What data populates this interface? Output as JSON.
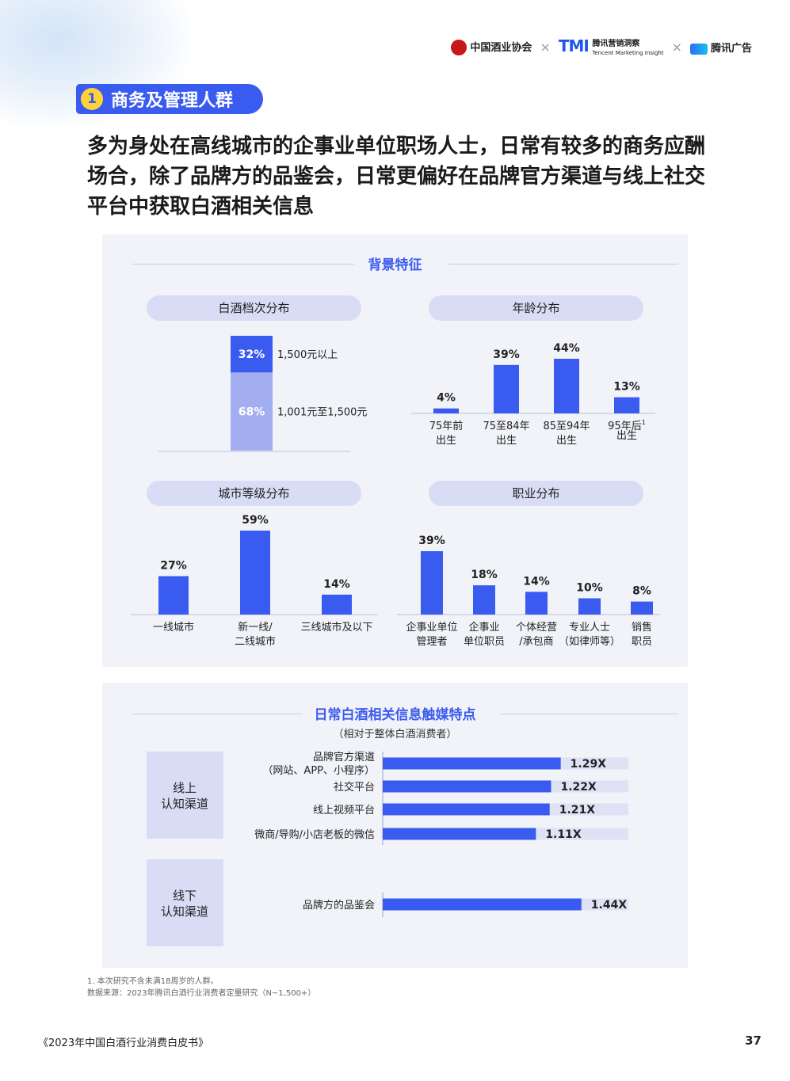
{
  "logos": {
    "assoc": "中国酒业协会",
    "tmi": "TMI",
    "tmi_name": "腾讯营销洞察",
    "tmi_en": "Tencent Marketing Insight",
    "ad": "腾讯广告",
    "sep": "×"
  },
  "section": {
    "number": "1",
    "title": "商务及管理人群"
  },
  "headline": "多为身处在高线城市的企事业单位职场人士，日常有较多的商务应酬场合，除了品牌方的品鉴会，日常更偏好在品牌官方渠道与线上社交平台中获取白酒相关信息",
  "panel1": {
    "title": "背景特征"
  },
  "panel2": {
    "title": "日常白酒相关信息触媒特点",
    "subtitle": "（相对于整体白酒消费者）"
  },
  "chart_data": [
    {
      "type": "bar",
      "title": "白酒档次分布",
      "stacked": true,
      "series": [
        {
          "name": "1,500元以上",
          "values": [
            32
          ],
          "label": "32%",
          "color": "#3a5bf0"
        },
        {
          "name": "1,001元至1,500元",
          "values": [
            68
          ],
          "label": "68%",
          "color": "#a3aef0"
        }
      ]
    },
    {
      "type": "bar",
      "title": "年龄分布",
      "categories": [
        "75年前\n出生",
        "75至84年\n出生",
        "85至94年\n出生",
        "95年后\n出生"
      ],
      "values": [
        4,
        39,
        44,
        13
      ],
      "labels": [
        "4%",
        "39%",
        "44%",
        "13%"
      ],
      "superscript_on_last": "1"
    },
    {
      "type": "bar",
      "title": "城市等级分布",
      "categories": [
        "一线城市",
        "新一线/\n二线城市",
        "三线城市及以下"
      ],
      "values": [
        27,
        59,
        14
      ],
      "labels": [
        "27%",
        "59%",
        "14%"
      ]
    },
    {
      "type": "bar",
      "title": "职业分布",
      "categories": [
        "企事业单位\n管理者",
        "企事业\n单位职员",
        "个体经营\n/承包商",
        "专业人士\n（如律师等）",
        "销售\n职员"
      ],
      "values": [
        39,
        18,
        14,
        10,
        8
      ],
      "labels": [
        "39%",
        "18%",
        "14%",
        "10%",
        "8%"
      ]
    },
    {
      "type": "bar",
      "orientation": "horizontal",
      "title": "日常白酒相关信息触媒特点",
      "groups": [
        {
          "name": "线上\n认知渠道",
          "categories": [
            "品牌官方渠道\n（网站、APP、小程序）",
            "社交平台",
            "线上视频平台",
            "微商/导购/小店老板的微信"
          ],
          "values": [
            1.29,
            1.22,
            1.21,
            1.11
          ],
          "labels": [
            "1.29X",
            "1.22X",
            "1.21X",
            "1.11X"
          ]
        },
        {
          "name": "线下\n认知渠道",
          "categories": [
            "品牌方的品鉴会"
          ],
          "values": [
            1.44
          ],
          "labels": [
            "1.44X"
          ]
        }
      ],
      "xlim": [
        0,
        1.78
      ]
    }
  ],
  "colors": {
    "bar": "#3a5bf0",
    "bar_light": "#a3aef0",
    "track": "#dfe2f5",
    "pill": "#d9dcf5",
    "accent_yellow": "#ffd23a"
  },
  "footnotes": [
    "1. 本次研究不含未满18周岁的人群。",
    "数据来源：2023年腾讯白酒行业消费者定量研究（N~1,500+）"
  ],
  "footer": {
    "book": "《2023年中国白酒行业消费白皮书》",
    "page": "37"
  }
}
